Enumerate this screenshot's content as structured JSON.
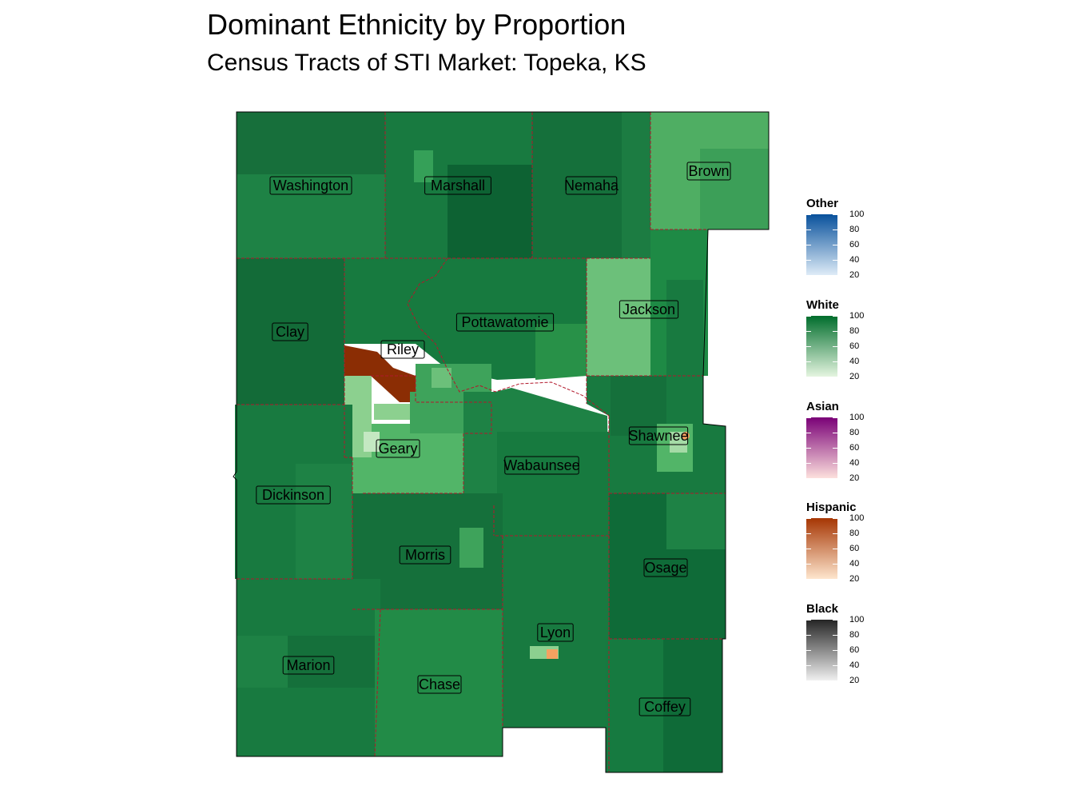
{
  "title": "Dominant Ethnicity by Proportion",
  "subtitle": "Census Tracts of STI Market: Topeka, KS",
  "counties": [
    {
      "name": "Washington"
    },
    {
      "name": "Marshall"
    },
    {
      "name": "Nemaha"
    },
    {
      "name": "Brown"
    },
    {
      "name": "Clay"
    },
    {
      "name": "Pottawatomie"
    },
    {
      "name": "Jackson"
    },
    {
      "name": "Riley"
    },
    {
      "name": "Shawnee"
    },
    {
      "name": "Geary"
    },
    {
      "name": "Wabaunsee"
    },
    {
      "name": "Dickinson"
    },
    {
      "name": "Morris"
    },
    {
      "name": "Osage"
    },
    {
      "name": "Lyon"
    },
    {
      "name": "Marion"
    },
    {
      "name": "Chase"
    },
    {
      "name": "Coffey"
    }
  ],
  "legend": {
    "breaks": [
      "100",
      "80",
      "60",
      "40",
      "20"
    ],
    "groups": [
      {
        "title": "Other",
        "color_low": "#deebf7",
        "color_high": "#08519c"
      },
      {
        "title": "White",
        "color_low": "#e5f5e0",
        "color_high": "#006d2c"
      },
      {
        "title": "Asian",
        "color_low": "#fde0dd",
        "color_high": "#7a0177"
      },
      {
        "title": "Hispanic",
        "color_low": "#fee6ce",
        "color_high": "#a63603"
      },
      {
        "title": "Black",
        "color_low": "#f0f0f0",
        "color_high": "#252525"
      }
    ]
  },
  "colors": {
    "county_border": "#b2182b",
    "hispanic_tract": "#8b2d04",
    "white_dark": "#0f6b38",
    "white_mid": "#1e8a45",
    "white_light": "#52b568"
  }
}
